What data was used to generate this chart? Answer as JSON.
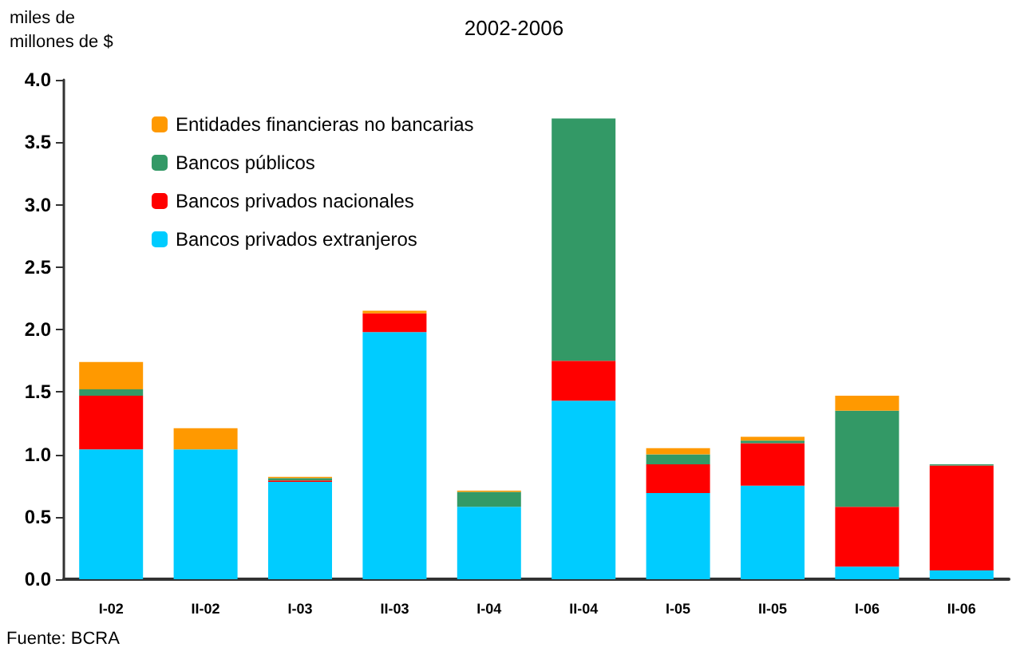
{
  "chart_data": {
    "type": "bar",
    "title": "2002-2006",
    "ylabel": "miles de\nmillones de $",
    "annotations": [
      "Fuente: BCRA"
    ],
    "categories": [
      "I-02",
      "II-02",
      "I-03",
      "II-03",
      "I-04",
      "II-04",
      "I-05",
      "II-05",
      "I-06",
      "II-06"
    ],
    "stacked": true,
    "ylim": [
      0,
      4
    ],
    "yticks": [
      {
        "value": 0,
        "label": "0.0"
      },
      {
        "value": 0.5,
        "label": "0.5"
      },
      {
        "value": 1,
        "label": "1.0"
      },
      {
        "value": 1.5,
        "label": "1.5"
      },
      {
        "value": 2,
        "label": "2.0"
      },
      {
        "value": 2.5,
        "label": "2.5"
      },
      {
        "value": 3,
        "label": "3.0"
      },
      {
        "value": 3.5,
        "label": "3.5"
      },
      {
        "value": 4,
        "label": "4.0"
      }
    ],
    "grid": false,
    "legend": "top left",
    "series": [
      {
        "name": "Bancos privados extranjeros",
        "color": "#00ccff",
        "values": [
          1.04,
          1.04,
          0.78,
          1.98,
          0.58,
          1.43,
          0.69,
          0.75,
          0.1,
          0.07
        ]
      },
      {
        "name": "Bancos privados nacionales",
        "color": "#ff0000",
        "values": [
          0.43,
          0,
          0.01,
          0.15,
          0,
          0.32,
          0.23,
          0.34,
          0.48,
          0.84
        ]
      },
      {
        "name": "Bancos públicos",
        "color": "#339966",
        "values": [
          0.05,
          0,
          0.02,
          0,
          0.12,
          1.94,
          0.08,
          0.02,
          0.77,
          0.01
        ]
      },
      {
        "name": "Entidades financieras no bancarias",
        "color": "#ff9900",
        "values": [
          0.22,
          0.17,
          0.01,
          0.02,
          0.01,
          0,
          0.05,
          0.03,
          0.12,
          0
        ]
      }
    ]
  }
}
